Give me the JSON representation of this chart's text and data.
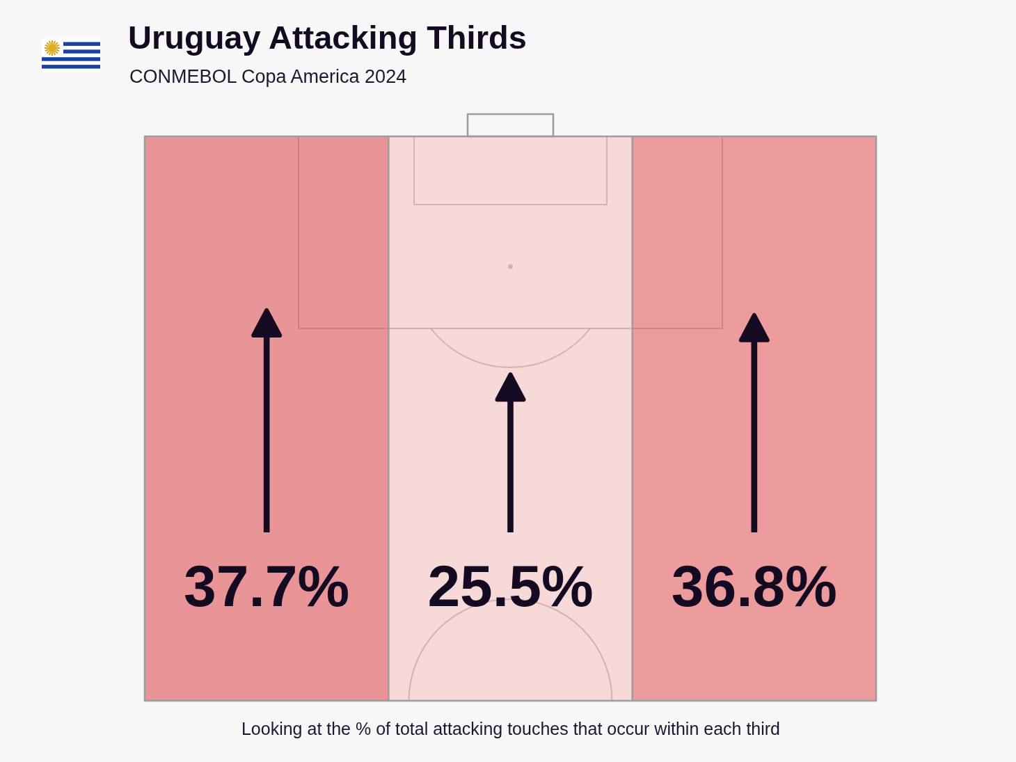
{
  "chart_data": {
    "type": "other",
    "title": "Uruguay Attacking Thirds",
    "subtitle": "CONMEBOL Copa America 2024",
    "annotations": [
      "Looking at the % of total attacking touches that occur within each third"
    ],
    "categories": [
      null,
      null,
      null
    ],
    "values": [
      37.7,
      25.5,
      36.8
    ],
    "value_labels": [
      "37.7%",
      "25.5%",
      "36.8%"
    ],
    "color": "#140a22",
    "colors": [
      "#e99597",
      "#f7d9d8",
      "#ec9c9c"
    ]
  }
}
